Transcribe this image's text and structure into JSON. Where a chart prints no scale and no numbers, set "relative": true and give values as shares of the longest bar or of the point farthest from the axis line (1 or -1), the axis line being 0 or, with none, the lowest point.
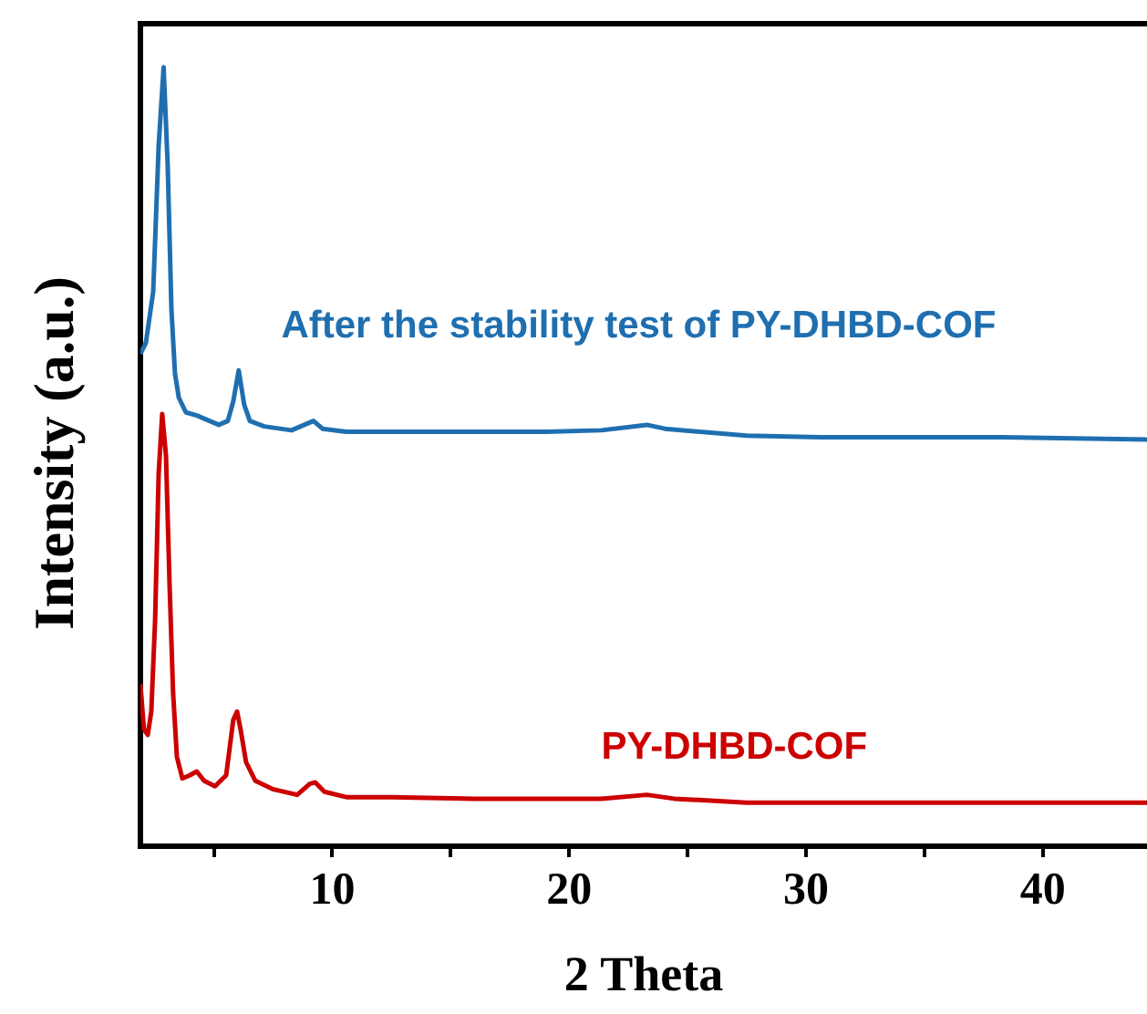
{
  "chart_data": {
    "type": "line",
    "relative": true,
    "xlabel": "2 Theta",
    "ylabel": "Intensity (a.u.)",
    "xlim": [
      1.9,
      44.4
    ],
    "xticks": [
      {
        "value": 5,
        "label": null
      },
      10,
      {
        "value": 15,
        "label": null
      },
      20,
      {
        "value": 25,
        "label": null
      },
      30,
      {
        "value": 35,
        "label": null
      },
      40
    ],
    "grid": false,
    "legend": false,
    "marker": "none",
    "series": [
      {
        "name": "After the stability test of PY-DHBD-COF",
        "color": "#1f6fb0",
        "x": [
          1.9,
          2.13,
          2.44,
          2.67,
          2.88,
          3.05,
          3.21,
          3.36,
          3.52,
          3.82,
          4.28,
          4.82,
          5.21,
          5.59,
          5.82,
          6.05,
          6.28,
          6.52,
          7.13,
          8.28,
          8.82,
          9.21,
          9.59,
          10.59,
          12.5,
          15.2,
          19.05,
          21.36,
          23.28,
          24.05,
          27.5,
          30.6,
          34.4,
          38.3,
          44.4
        ],
        "values": [
          0.632,
          0.646,
          0.712,
          0.899,
          1,
          0.876,
          0.689,
          0.607,
          0.576,
          0.557,
          0.553,
          0.546,
          0.541,
          0.546,
          0.571,
          0.611,
          0.567,
          0.546,
          0.539,
          0.534,
          0.541,
          0.546,
          0.536,
          0.532,
          0.532,
          0.532,
          0.532,
          0.534,
          0.541,
          0.536,
          0.527,
          0.525,
          0.525,
          0.525,
          0.522
        ]
      },
      {
        "name": "PY-DHBD-COF",
        "color": "#cc0000",
        "x": [
          1.9,
          2.05,
          2.21,
          2.36,
          2.52,
          2.67,
          2.82,
          2.98,
          3.13,
          3.28,
          3.44,
          3.67,
          3.98,
          4.28,
          4.59,
          5.05,
          5.52,
          5.82,
          5.98,
          6.13,
          6.36,
          6.75,
          7.52,
          8.52,
          9.05,
          9.28,
          9.67,
          10.59,
          12.5,
          15.98,
          19.05,
          21.36,
          23.28,
          24.44,
          27.5,
          34.4,
          44.4
        ],
        "values": [
          0.208,
          0.15,
          0.143,
          0.173,
          0.29,
          0.478,
          0.555,
          0.501,
          0.337,
          0.197,
          0.115,
          0.087,
          0.091,
          0.096,
          0.084,
          0.077,
          0.091,
          0.162,
          0.173,
          0.15,
          0.108,
          0.084,
          0.073,
          0.066,
          0.08,
          0.082,
          0.07,
          0.063,
          0.063,
          0.061,
          0.061,
          0.061,
          0.066,
          0.061,
          0.056,
          0.056,
          0.056
        ]
      }
    ]
  }
}
